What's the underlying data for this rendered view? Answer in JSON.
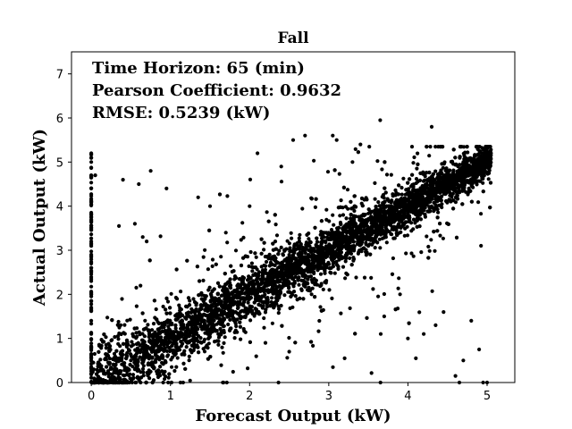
{
  "chart_data": {
    "type": "scatter",
    "title": "Fall",
    "xlabel": "Forecast Output (kW)",
    "ylabel": "Actual Output (kW)",
    "xlim": [
      -0.25,
      5.35
    ],
    "ylim": [
      0,
      7.5
    ],
    "xticks": [
      0,
      1,
      2,
      3,
      4,
      5
    ],
    "yticks": [
      0,
      1,
      2,
      3,
      4,
      5,
      6,
      7
    ],
    "grid": false,
    "marker_color": "#000000",
    "annotations": [
      "Time Horizon: 65 (min)",
      "Pearson Coefficient: 0.9632",
      "RMSE: 0.5239 (kW)"
    ],
    "series": [
      {
        "values_sample_note_free": true,
        "points": [
          [
            0.0,
            5.2
          ],
          [
            0.0,
            5.0
          ],
          [
            0.0,
            4.7
          ],
          [
            0.0,
            4.4
          ],
          [
            0.0,
            4.1
          ],
          [
            0.0,
            3.8
          ],
          [
            0.0,
            3.5
          ],
          [
            0.0,
            3.2
          ],
          [
            0.0,
            2.9
          ],
          [
            0.0,
            2.6
          ],
          [
            0.0,
            2.3
          ],
          [
            0.0,
            2.0
          ],
          [
            0.0,
            1.7
          ],
          [
            0.0,
            1.4
          ],
          [
            0.0,
            1.1
          ],
          [
            0.0,
            0.8
          ],
          [
            0.0,
            0.5
          ],
          [
            0.0,
            0.2
          ],
          [
            0.05,
            4.7
          ],
          [
            0.4,
            4.6
          ],
          [
            0.6,
            4.5
          ],
          [
            0.75,
            4.8
          ],
          [
            0.95,
            4.4
          ],
          [
            2.1,
            5.2
          ],
          [
            2.55,
            5.5
          ],
          [
            2.7,
            5.6
          ],
          [
            3.05,
            5.6
          ],
          [
            3.1,
            5.5
          ],
          [
            3.65,
            5.95
          ],
          [
            4.3,
            5.8
          ],
          [
            3.4,
            5.4
          ],
          [
            3.3,
            5.0
          ],
          [
            2.4,
            4.9
          ],
          [
            2.0,
            4.0
          ],
          [
            1.35,
            4.2
          ],
          [
            1.5,
            4.0
          ],
          [
            1.7,
            3.4
          ],
          [
            0.55,
            3.6
          ],
          [
            0.35,
            3.55
          ],
          [
            0.65,
            3.3
          ],
          [
            0.7,
            3.2
          ],
          [
            4.0,
            1.0
          ],
          [
            4.1,
            0.55
          ],
          [
            4.35,
            1.3
          ],
          [
            4.6,
            0.15
          ],
          [
            4.65,
            0.0
          ],
          [
            4.7,
            0.5
          ],
          [
            4.9,
            0.75
          ],
          [
            4.95,
            0.0
          ],
          [
            5.0,
            0.0
          ],
          [
            3.2,
            0.55
          ],
          [
            2.5,
            0.7
          ],
          [
            2.2,
            0.9
          ],
          [
            3.7,
            1.5
          ],
          [
            3.9,
            2.0
          ],
          [
            4.2,
            1.1
          ],
          [
            4.45,
            1.6
          ],
          [
            4.8,
            1.4
          ],
          [
            5.0,
            5.3
          ],
          [
            5.05,
            5.2
          ],
          [
            4.95,
            5.1
          ],
          [
            4.85,
            4.9
          ],
          [
            4.7,
            5.0
          ],
          [
            4.5,
            4.6
          ],
          [
            4.3,
            4.4
          ],
          [
            4.1,
            4.2
          ],
          [
            3.9,
            4.0
          ],
          [
            3.7,
            3.8
          ],
          [
            3.5,
            3.5
          ],
          [
            3.3,
            3.3
          ],
          [
            3.1,
            3.1
          ],
          [
            2.9,
            2.9
          ],
          [
            2.7,
            2.7
          ],
          [
            2.5,
            2.5
          ],
          [
            2.3,
            2.3
          ],
          [
            2.1,
            2.1
          ],
          [
            1.9,
            1.9
          ],
          [
            1.7,
            1.7
          ],
          [
            1.5,
            1.5
          ],
          [
            1.3,
            1.3
          ],
          [
            1.1,
            1.1
          ],
          [
            0.9,
            0.9
          ],
          [
            0.7,
            0.7
          ],
          [
            0.5,
            0.5
          ],
          [
            0.3,
            0.3
          ],
          [
            0.1,
            0.1
          ]
        ]
      }
    ]
  }
}
